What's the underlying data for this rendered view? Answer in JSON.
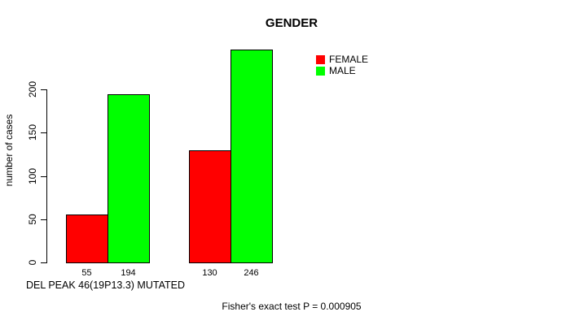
{
  "chart_data": {
    "type": "bar",
    "title": "GENDER",
    "xlabel": "",
    "ylabel": "number of cases",
    "ylim": [
      0,
      200
    ],
    "yticks": [
      0,
      50,
      100,
      150,
      200
    ],
    "grid": false,
    "legend_position": "top-right",
    "categories": [
      "DEL PEAK 46(19P13.3) MUTATED",
      ""
    ],
    "series": [
      {
        "name": "FEMALE",
        "color": "#FF0000",
        "values": [
          55,
          130
        ]
      },
      {
        "name": "MALE",
        "color": "#00FF00",
        "values": [
          194,
          246
        ]
      }
    ],
    "bar_value_labels": [
      "55",
      "194",
      "130",
      "246"
    ],
    "annotations": {
      "x_axis_note": "DEL PEAK 46(19P13.3) MUTATED",
      "stat_note": "Fisher's exact test P = 0.000905"
    }
  }
}
